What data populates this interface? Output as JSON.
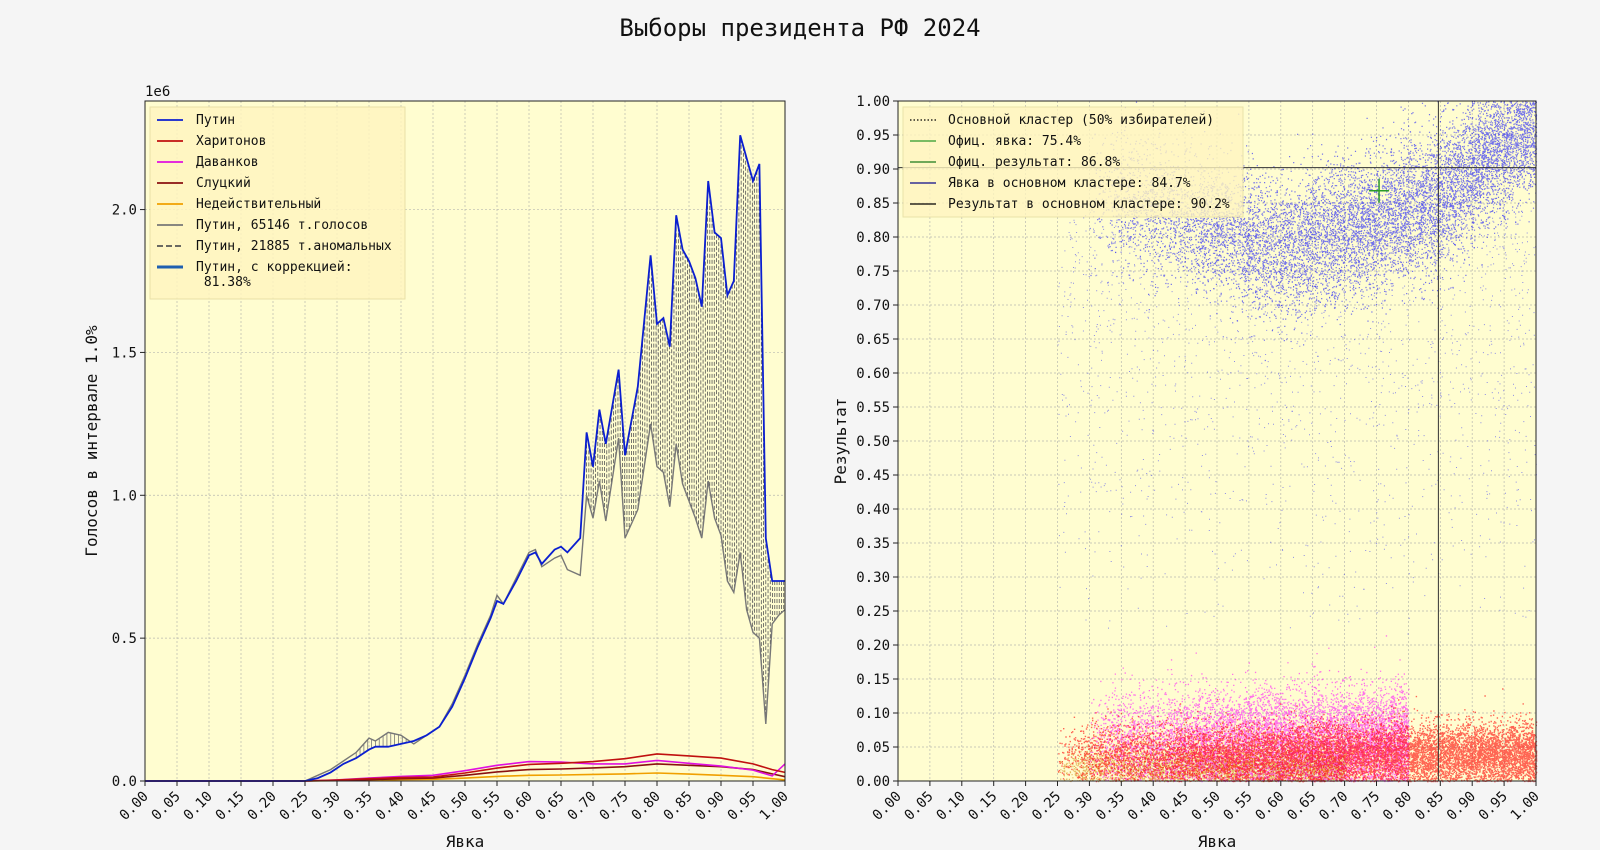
{
  "figure": {
    "title": "Выборы президента РФ 2024",
    "background": "#f5f5f5",
    "axes_face": "#fffdd0"
  },
  "chart_data": [
    {
      "type": "line",
      "panel": "left",
      "xlabel": "Явка",
      "ylabel": "Голосов в интервале 1.0%",
      "y_offset_label": "1e6",
      "xlim": [
        0,
        1
      ],
      "ylim": [
        0,
        2.38
      ],
      "x_ticks": [
        "0.00",
        "0.05",
        "0.10",
        "0.15",
        "0.20",
        "0.25",
        "0.30",
        "0.35",
        "0.40",
        "0.45",
        "0.50",
        "0.55",
        "0.60",
        "0.65",
        "0.70",
        "0.75",
        "0.80",
        "0.85",
        "0.90",
        "0.95",
        "1.00"
      ],
      "y_ticks": [
        "0.0",
        "0.5",
        "1.0",
        "1.5",
        "2.0"
      ],
      "grid": true,
      "legend_position": "top-left",
      "series": [
        {
          "name": "Путин",
          "color": "#0b1fd0",
          "style": "solid",
          "x": [
            0,
            0.25,
            0.27,
            0.29,
            0.31,
            0.33,
            0.35,
            0.36,
            0.38,
            0.4,
            0.42,
            0.44,
            0.46,
            0.48,
            0.5,
            0.52,
            0.54,
            0.55,
            0.56,
            0.58,
            0.6,
            0.61,
            0.62,
            0.64,
            0.65,
            0.66,
            0.68,
            0.69,
            0.7,
            0.71,
            0.72,
            0.74,
            0.75,
            0.77,
            0.79,
            0.8,
            0.81,
            0.82,
            0.83,
            0.84,
            0.85,
            0.86,
            0.87,
            0.88,
            0.89,
            0.9,
            0.91,
            0.92,
            0.93,
            0.94,
            0.95,
            0.96,
            0.97,
            0.98,
            0.99,
            1.0
          ],
          "y": [
            0,
            0,
            0.01,
            0.03,
            0.06,
            0.08,
            0.11,
            0.12,
            0.12,
            0.13,
            0.14,
            0.16,
            0.19,
            0.26,
            0.36,
            0.47,
            0.57,
            0.63,
            0.62,
            0.7,
            0.79,
            0.8,
            0.76,
            0.81,
            0.82,
            0.8,
            0.85,
            1.22,
            1.1,
            1.3,
            1.18,
            1.44,
            1.14,
            1.38,
            1.84,
            1.6,
            1.62,
            1.52,
            1.98,
            1.86,
            1.82,
            1.76,
            1.66,
            2.1,
            1.92,
            1.9,
            1.7,
            1.75,
            2.26,
            2.18,
            2.1,
            2.16,
            0.85,
            0.7,
            0.7,
            0.7
          ]
        },
        {
          "name": "Харитонов",
          "color": "#c01010",
          "style": "solid",
          "x": [
            0,
            0.25,
            0.3,
            0.35,
            0.4,
            0.45,
            0.5,
            0.55,
            0.6,
            0.65,
            0.7,
            0.75,
            0.8,
            0.85,
            0.9,
            0.95,
            0.98,
            1.0
          ],
          "y": [
            0,
            0,
            0.003,
            0.008,
            0.012,
            0.014,
            0.028,
            0.045,
            0.058,
            0.062,
            0.068,
            0.078,
            0.095,
            0.088,
            0.08,
            0.06,
            0.04,
            0.03
          ]
        },
        {
          "name": "Даванков",
          "color": "#e010e0",
          "style": "solid",
          "x": [
            0,
            0.25,
            0.3,
            0.35,
            0.4,
            0.45,
            0.5,
            0.55,
            0.6,
            0.65,
            0.7,
            0.75,
            0.8,
            0.85,
            0.9,
            0.95,
            0.98,
            1.0
          ],
          "y": [
            0,
            0,
            0.004,
            0.01,
            0.016,
            0.02,
            0.036,
            0.055,
            0.068,
            0.066,
            0.06,
            0.06,
            0.072,
            0.062,
            0.052,
            0.038,
            0.018,
            0.06
          ]
        },
        {
          "name": "Слуцкий",
          "color": "#8a1010",
          "style": "solid",
          "x": [
            0,
            0.25,
            0.3,
            0.35,
            0.4,
            0.45,
            0.5,
            0.55,
            0.6,
            0.65,
            0.7,
            0.75,
            0.8,
            0.85,
            0.9,
            0.95,
            0.98,
            1.0
          ],
          "y": [
            0,
            0,
            0.002,
            0.005,
            0.008,
            0.01,
            0.02,
            0.032,
            0.04,
            0.042,
            0.046,
            0.05,
            0.06,
            0.055,
            0.05,
            0.04,
            0.025,
            0.015
          ]
        },
        {
          "name": "Недействительный",
          "color": "#f0a000",
          "style": "solid",
          "x": [
            0,
            0.25,
            0.3,
            0.35,
            0.4,
            0.45,
            0.5,
            0.55,
            0.6,
            0.65,
            0.7,
            0.75,
            0.8,
            0.85,
            0.9,
            0.95,
            0.98,
            1.0
          ],
          "y": [
            0,
            0,
            0.001,
            0.003,
            0.005,
            0.006,
            0.01,
            0.016,
            0.02,
            0.021,
            0.023,
            0.025,
            0.028,
            0.024,
            0.02,
            0.015,
            0.008,
            0.004
          ]
        },
        {
          "name": "Путин, 65146 т.голосов",
          "color": "#777777",
          "style": "solid",
          "x": [
            0,
            0.25,
            0.27,
            0.29,
            0.31,
            0.33,
            0.35,
            0.36,
            0.38,
            0.4,
            0.42,
            0.44,
            0.46,
            0.48,
            0.5,
            0.52,
            0.54,
            0.55,
            0.56,
            0.58,
            0.6,
            0.61,
            0.62,
            0.64,
            0.65,
            0.66,
            0.68,
            0.69,
            0.7,
            0.71,
            0.72,
            0.74,
            0.75,
            0.77,
            0.79,
            0.8,
            0.81,
            0.82,
            0.83,
            0.84,
            0.85,
            0.86,
            0.87,
            0.88,
            0.89,
            0.9,
            0.91,
            0.92,
            0.93,
            0.94,
            0.95,
            0.96,
            0.97,
            0.98,
            0.99,
            1.0
          ],
          "y": [
            0,
            0,
            0.02,
            0.04,
            0.07,
            0.1,
            0.15,
            0.14,
            0.17,
            0.16,
            0.13,
            0.16,
            0.19,
            0.27,
            0.37,
            0.48,
            0.58,
            0.65,
            0.62,
            0.71,
            0.8,
            0.81,
            0.75,
            0.78,
            0.79,
            0.74,
            0.72,
            1.0,
            0.92,
            1.05,
            0.91,
            1.2,
            0.85,
            0.95,
            1.25,
            1.1,
            1.08,
            0.96,
            1.18,
            1.04,
            0.98,
            0.92,
            0.85,
            1.05,
            0.92,
            0.86,
            0.7,
            0.66,
            0.8,
            0.6,
            0.52,
            0.5,
            0.2,
            0.55,
            0.58,
            0.6
          ]
        }
      ],
      "anomalous": {
        "name": "Путин, 21885 т.аномальных",
        "color": "#555555",
        "style": "dashed-hatch",
        "x_from": 0.69,
        "x_to": 1.0
      },
      "corrected": {
        "name": "Путин, с коррекцией:\n 81.38%",
        "color": "#1f5fb0"
      }
    },
    {
      "type": "scatter",
      "panel": "right",
      "xlabel": "Явка",
      "ylabel": "Результат",
      "xlim": [
        0,
        1
      ],
      "ylim": [
        0,
        1
      ],
      "x_ticks": [
        "0.00",
        "0.05",
        "0.10",
        "0.15",
        "0.20",
        "0.25",
        "0.30",
        "0.35",
        "0.40",
        "0.45",
        "0.50",
        "0.55",
        "0.60",
        "0.65",
        "0.70",
        "0.75",
        "0.80",
        "0.85",
        "0.90",
        "0.95",
        "1.00"
      ],
      "y_ticks": [
        "0.00",
        "0.05",
        "0.10",
        "0.15",
        "0.20",
        "0.25",
        "0.30",
        "0.35",
        "0.40",
        "0.45",
        "0.50",
        "0.55",
        "0.60",
        "0.65",
        "0.70",
        "0.75",
        "0.80",
        "0.85",
        "0.90",
        "0.95",
        "1.00"
      ],
      "grid": true,
      "legend_position": "top-left",
      "series": [
        {
          "name": "Путин",
          "color": "#0000ff",
          "cluster": {
            "x_range": [
              0.3,
              1.0
            ],
            "y_center_at_x": [
              [
                0.3,
                0.87
              ],
              [
                0.45,
                0.83
              ],
              [
                0.6,
                0.78
              ],
              [
                0.75,
                0.82
              ],
              [
                0.85,
                0.86
              ],
              [
                0.95,
                0.94
              ],
              [
                1.0,
                0.97
              ]
            ],
            "spread": 0.05
          }
        },
        {
          "name": "Харитонов",
          "color": "#ff0000",
          "cluster": {
            "x_range": [
              0.25,
              1.0
            ],
            "y_center": 0.04,
            "spread": 0.025
          }
        },
        {
          "name": "Даванков",
          "color": "#ff00ff",
          "cluster": {
            "x_range": [
              0.3,
              0.8
            ],
            "y_center": 0.06,
            "spread": 0.04
          }
        },
        {
          "name": "Недействительный",
          "color": "#d08000",
          "cluster": {
            "x_range": [
              0.25,
              0.7
            ],
            "y_center": 0.02,
            "spread": 0.015
          }
        }
      ],
      "reference_lines": {
        "official_turnout": 0.754,
        "official_result": 0.868,
        "cluster_turnout": 0.847,
        "cluster_result": 0.902
      },
      "legend": [
        {
          "label": "Основной кластер (50% избирателей)",
          "color": "#000000",
          "style": "dotted"
        },
        {
          "label": "Офиц. явка: 75.4%",
          "color": "#2a9a2a",
          "style": "solid"
        },
        {
          "label": "Офиц. результат: 86.8%",
          "color": "#1a7a1a",
          "style": "solid"
        },
        {
          "label": "Явка в основном кластере: 84.7%",
          "color": "#0a0a8a",
          "style": "solid"
        },
        {
          "label": "Результат в основном кластере: 90.2%",
          "color": "#000000",
          "style": "solid"
        }
      ]
    }
  ]
}
